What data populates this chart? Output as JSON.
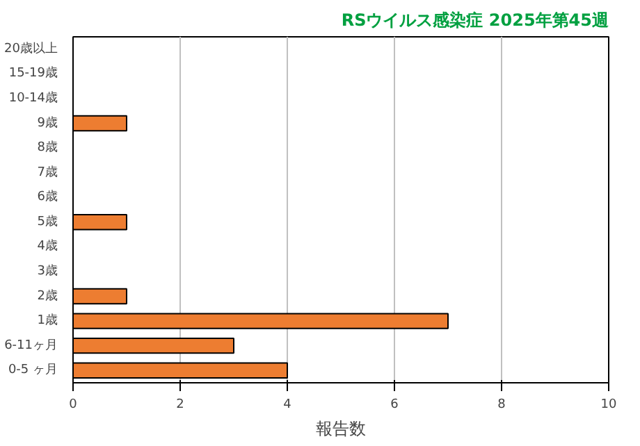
{
  "chart_data": {
    "type": "bar",
    "orientation": "horizontal",
    "title": "RSウイルス感染症 2025年第45週",
    "xlabel": "報告数",
    "categories": [
      "20歳以上",
      "15-19歳",
      "10-14歳",
      "9歳",
      "8歳",
      "7歳",
      "6歳",
      "5歳",
      "4歳",
      "3歳",
      "2歳",
      "1歳",
      "6-11ヶ月",
      "0-5 ヶ月"
    ],
    "values": [
      0,
      0,
      0,
      1,
      0,
      0,
      0,
      1,
      0,
      0,
      1,
      7,
      3,
      4
    ],
    "color": "#ed7d31",
    "xlim": [
      0,
      10
    ],
    "xticks": [
      0,
      2,
      4,
      6,
      8,
      10
    ],
    "grid": "x"
  }
}
